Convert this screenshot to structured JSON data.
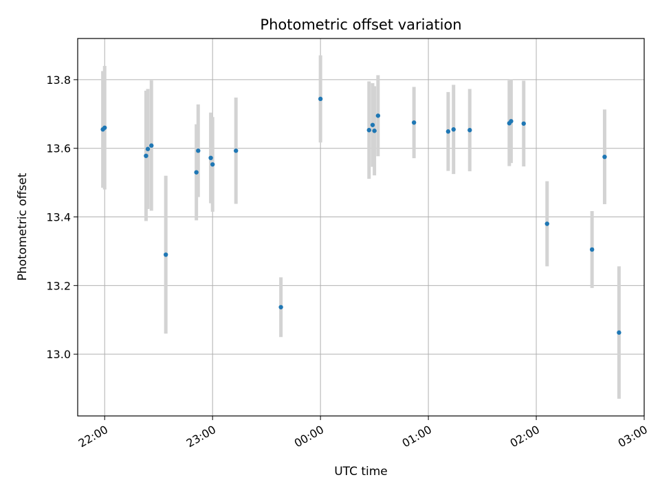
{
  "chart_data": {
    "type": "scatter",
    "title": "Photometric offset variation",
    "xlabel": "UTC time",
    "ylabel": "Photometric offset",
    "xlim": [
      "21:45",
      "03:00"
    ],
    "ylim": [
      12.82,
      13.92
    ],
    "grid": true,
    "x_tick_labels": [
      "22:00",
      "23:00",
      "00:00",
      "01:00",
      "02:00",
      "03:00"
    ],
    "y_tick_labels": [
      "13.0",
      "13.2",
      "13.4",
      "13.6",
      "13.8"
    ],
    "y_ticks": [
      13.0,
      13.2,
      13.4,
      13.6,
      13.8
    ],
    "colors": {
      "marker": "#1f77b4",
      "errorbar": "#d3d3d3",
      "grid": "#b0b0b0"
    },
    "points": [
      {
        "x": "21:59",
        "y": 13.655,
        "err": 0.17
      },
      {
        "x": "22:00",
        "y": 13.66,
        "err": 0.18
      },
      {
        "x": "22:23",
        "y": 13.578,
        "err": 0.19
      },
      {
        "x": "22:24",
        "y": 13.598,
        "err": 0.175
      },
      {
        "x": "22:26",
        "y": 13.608,
        "err": 0.19
      },
      {
        "x": "22:34",
        "y": 13.29,
        "err": 0.23
      },
      {
        "x": "22:51",
        "y": 13.53,
        "err": 0.14
      },
      {
        "x": "22:52",
        "y": 13.593,
        "err": 0.135
      },
      {
        "x": "22:59",
        "y": 13.572,
        "err": 0.132
      },
      {
        "x": "23:00",
        "y": 13.553,
        "err": 0.138
      },
      {
        "x": "23:13",
        "y": 13.593,
        "err": 0.155
      },
      {
        "x": "23:38",
        "y": 13.137,
        "err": 0.087
      },
      {
        "x": "00:00",
        "y": 13.744,
        "err": 0.127
      },
      {
        "x": "00:27",
        "y": 13.653,
        "err": 0.142
      },
      {
        "x": "00:29",
        "y": 13.668,
        "err": 0.122
      },
      {
        "x": "00:30",
        "y": 13.651,
        "err": 0.13
      },
      {
        "x": "00:32",
        "y": 13.695,
        "err": 0.118
      },
      {
        "x": "00:52",
        "y": 13.675,
        "err": 0.104
      },
      {
        "x": "01:11",
        "y": 13.649,
        "err": 0.115
      },
      {
        "x": "01:14",
        "y": 13.655,
        "err": 0.13
      },
      {
        "x": "01:23",
        "y": 13.653,
        "err": 0.12
      },
      {
        "x": "01:45",
        "y": 13.673,
        "err": 0.125
      },
      {
        "x": "01:46",
        "y": 13.679,
        "err": 0.122
      },
      {
        "x": "01:53",
        "y": 13.672,
        "err": 0.125
      },
      {
        "x": "02:06",
        "y": 13.38,
        "err": 0.124
      },
      {
        "x": "02:31",
        "y": 13.305,
        "err": 0.112
      },
      {
        "x": "02:38",
        "y": 13.575,
        "err": 0.138
      },
      {
        "x": "02:46",
        "y": 13.063,
        "err": 0.193
      }
    ]
  }
}
